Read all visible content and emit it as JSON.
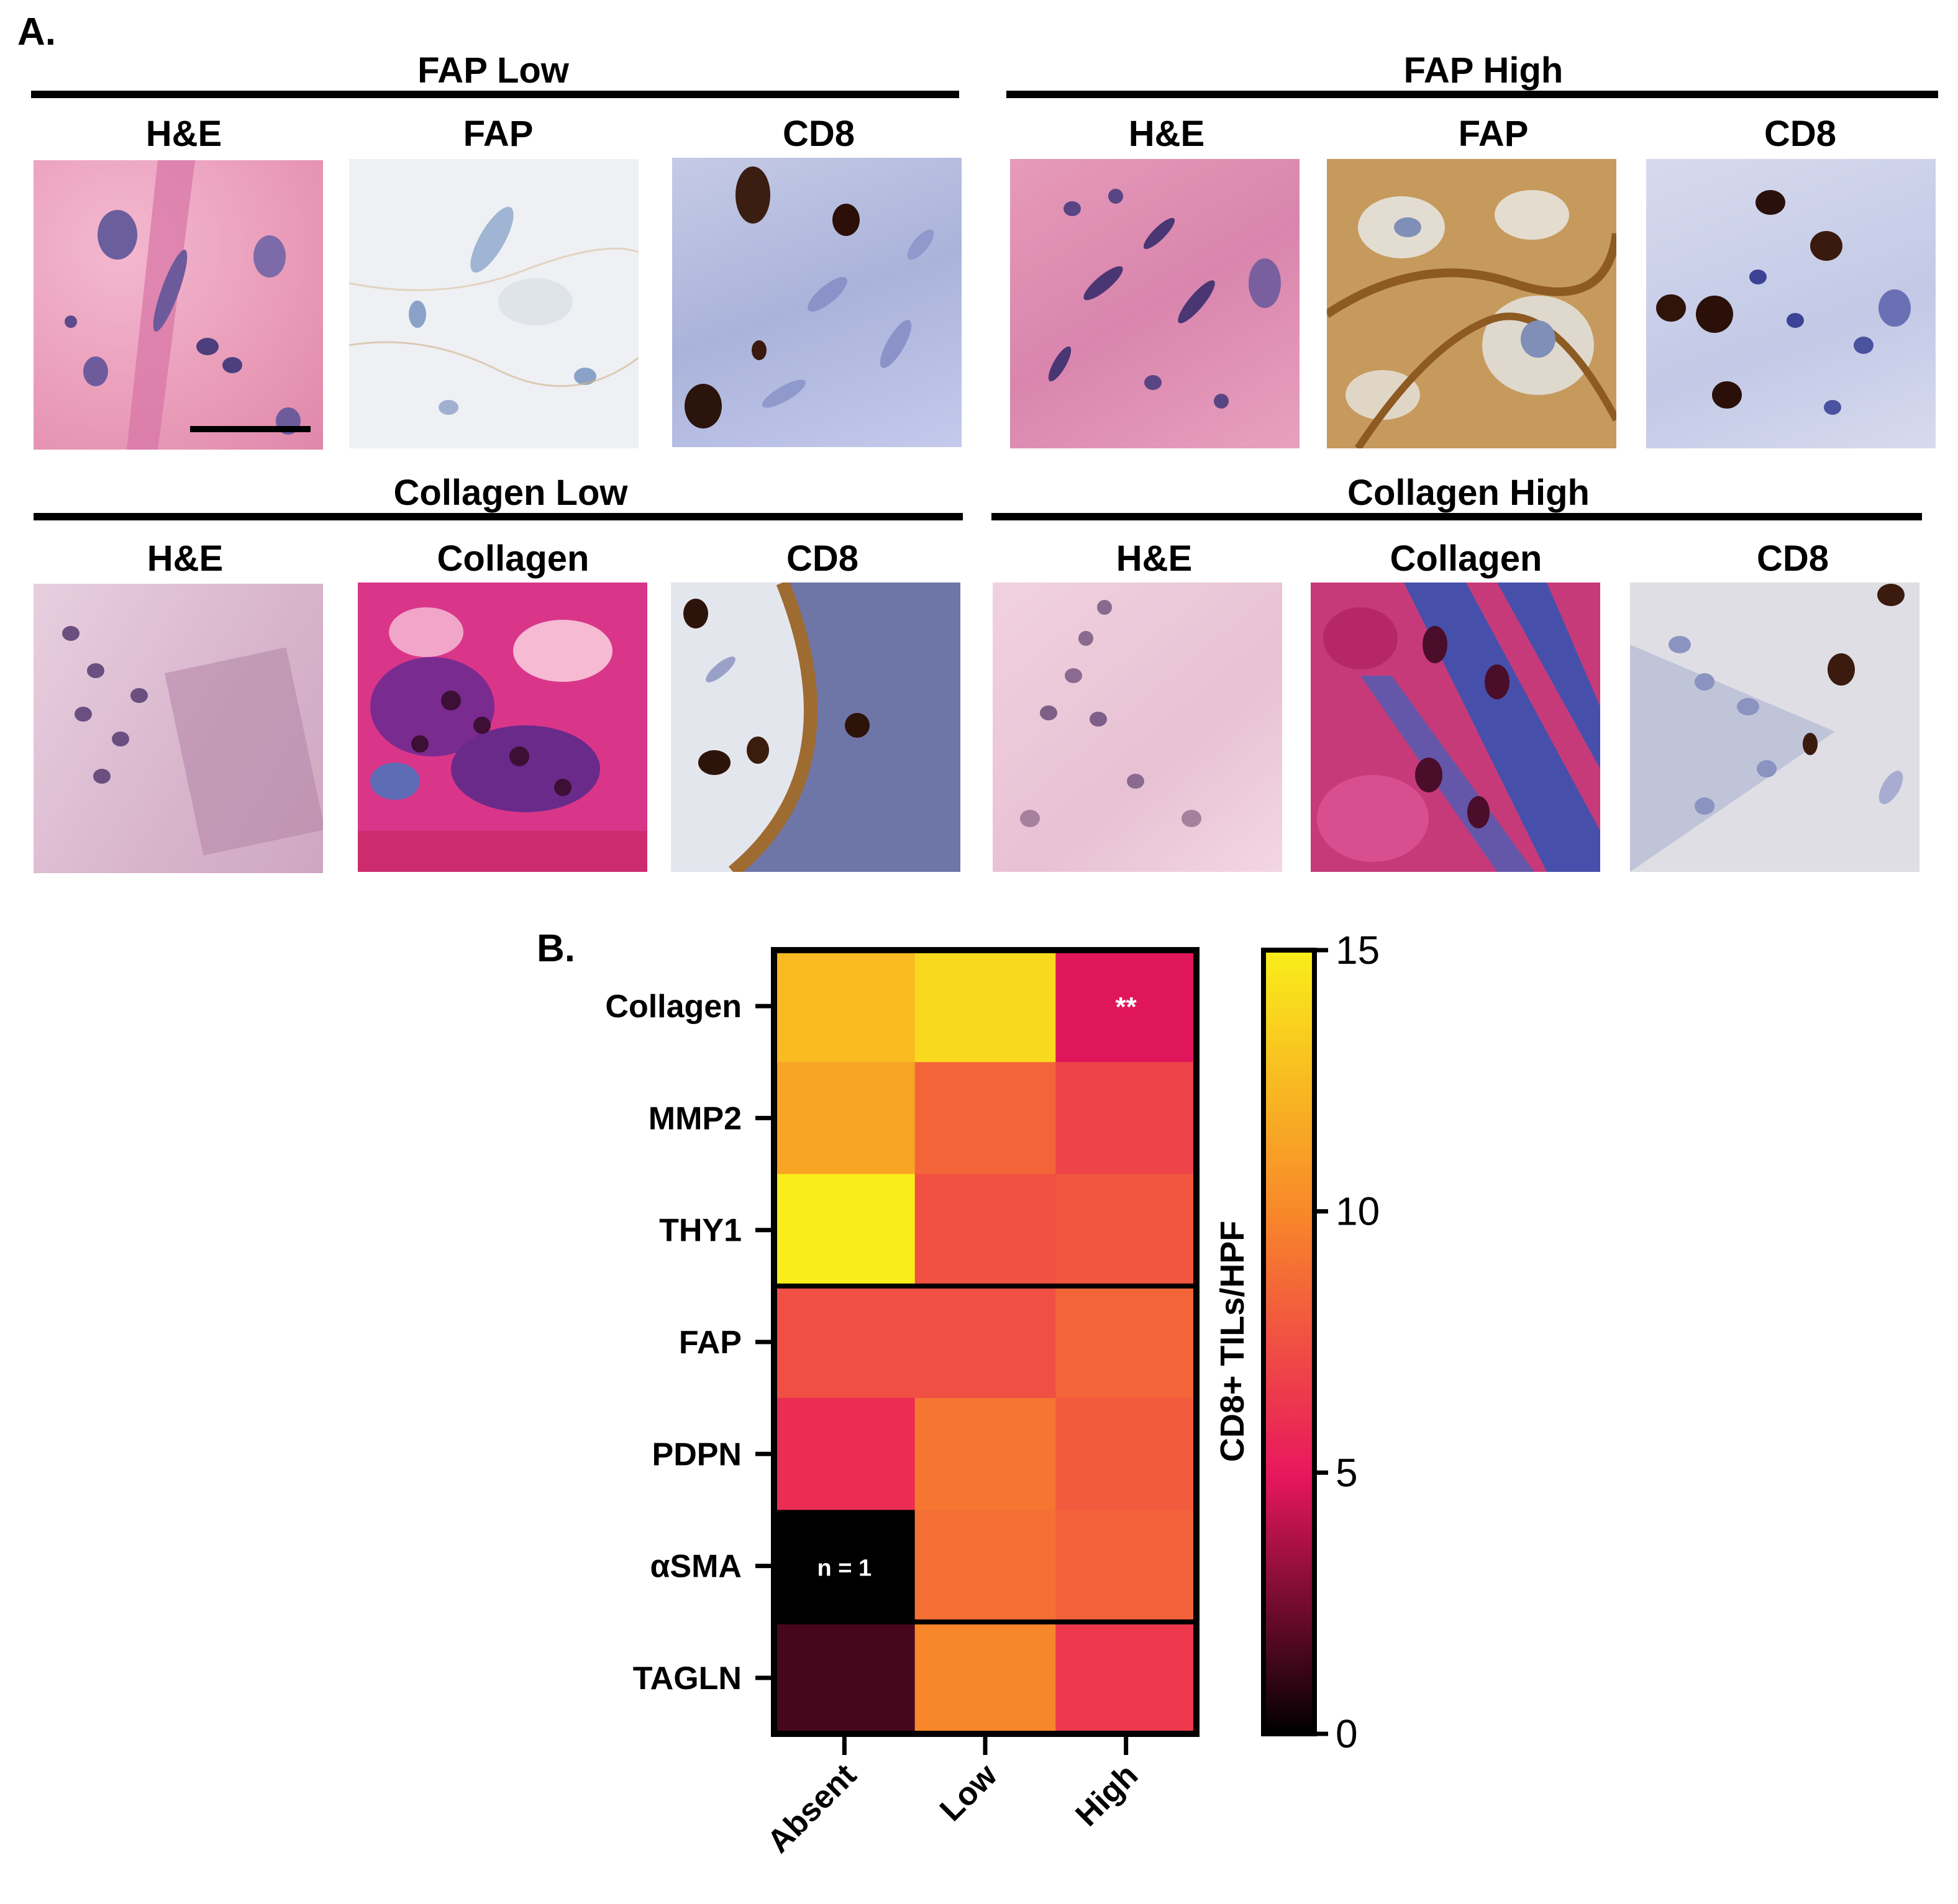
{
  "panel_a": {
    "letter": "A.",
    "groups": [
      {
        "title": "FAP Low",
        "subtitles": [
          "H&E",
          "FAP",
          "CD8"
        ]
      },
      {
        "title": "FAP High",
        "subtitles": [
          "H&E",
          "FAP",
          "CD8"
        ]
      },
      {
        "title": "Collagen Low",
        "subtitles": [
          "H&E",
          "Collagen",
          "CD8"
        ]
      },
      {
        "title": "Collagen High",
        "subtitles": [
          "H&E",
          "Collagen",
          "CD8"
        ]
      }
    ]
  },
  "panel_b": {
    "letter": "B."
  },
  "chart_data": {
    "type": "heatmap",
    "rows": [
      "Collagen",
      "MMP2",
      "THY1",
      "FAP",
      "PDPN",
      "αSMA",
      "TAGLN"
    ],
    "columns": [
      "Absent",
      "Low",
      "High"
    ],
    "values": [
      [
        12.5,
        14.0,
        4.8
      ],
      [
        11.5,
        8.5,
        7.0
      ],
      [
        15.0,
        7.6,
        7.9
      ],
      [
        7.5,
        7.5,
        8.5
      ],
      [
        6.0,
        9.3,
        8.0
      ],
      [
        0.0,
        9.0,
        8.4
      ],
      [
        1.5,
        10.0,
        6.5
      ]
    ],
    "annotations": [
      {
        "row": "Collagen",
        "column": "High",
        "text": "**"
      },
      {
        "row": "αSMA",
        "column": "Absent",
        "text": "n = 1"
      }
    ],
    "colorbar": {
      "label": "CD8+ TILs/HPF",
      "range": [
        0,
        15
      ],
      "ticks": [
        "0",
        "5",
        "10",
        "15"
      ],
      "colors": [
        "#000000",
        "#e8175d",
        "#f8862a",
        "#f9ee1a"
      ]
    },
    "group_separators_after_rows": [
      "THY1",
      "αSMA"
    ]
  }
}
